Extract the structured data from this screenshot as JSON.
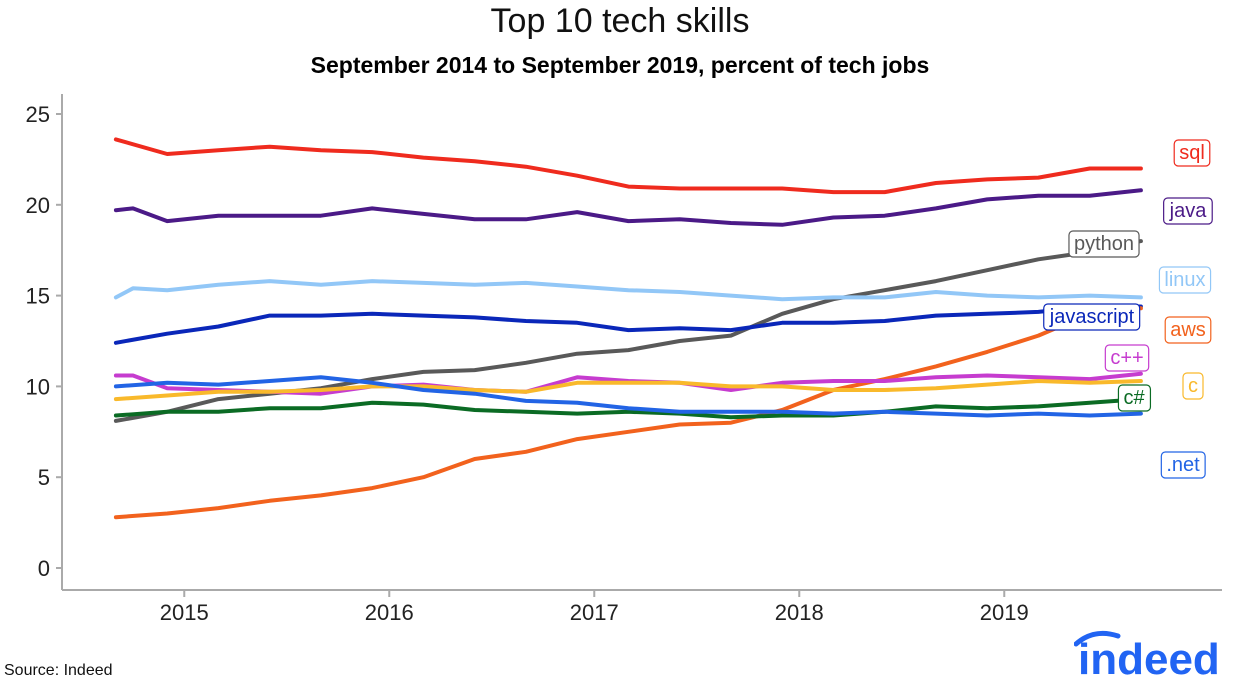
{
  "title": "Top 10 tech skills",
  "subtitle": "September 2014 to September 2019, percent of tech jobs",
  "source": "Source: Indeed",
  "logo_text": "indeed",
  "chart_data": {
    "type": "line",
    "title": "Top 10 tech skills",
    "subtitle": "September 2014 to September 2019, percent of tech jobs",
    "xlabel": "",
    "ylabel": "",
    "x_range": [
      "2014-09",
      "2019-09"
    ],
    "x_ticks": [
      2015,
      2016,
      2017,
      2018,
      2019
    ],
    "x_tick_labels": [
      "2015",
      "2016",
      "2017",
      "2018",
      "2019"
    ],
    "ylim": [
      0,
      26
    ],
    "y_ticks": [
      0,
      5,
      10,
      15,
      20,
      25
    ],
    "y_tick_labels": [
      "0",
      "5",
      "10",
      "15",
      "20",
      "25"
    ],
    "grid": false,
    "legend": "direct labels at right end of lines",
    "series": [
      {
        "name": "sql",
        "color": "#ef2b1e",
        "points": [
          [
            "2014-09",
            23.6
          ],
          [
            "2014-12",
            22.8
          ],
          [
            "2015-03",
            23.0
          ],
          [
            "2015-06",
            23.2
          ],
          [
            "2015-09",
            23.0
          ],
          [
            "2015-12",
            22.9
          ],
          [
            "2016-03",
            22.6
          ],
          [
            "2016-06",
            22.4
          ],
          [
            "2016-09",
            22.1
          ],
          [
            "2016-12",
            21.6
          ],
          [
            "2017-03",
            21.0
          ],
          [
            "2017-06",
            20.9
          ],
          [
            "2017-09",
            20.9
          ],
          [
            "2017-12",
            20.9
          ],
          [
            "2018-03",
            20.7
          ],
          [
            "2018-06",
            20.7
          ],
          [
            "2018-09",
            21.2
          ],
          [
            "2018-12",
            21.4
          ],
          [
            "2019-03",
            21.5
          ],
          [
            "2019-06",
            22.0
          ],
          [
            "2019-09",
            22.0
          ]
        ]
      },
      {
        "name": "java",
        "color": "#4b1a87",
        "points": [
          [
            "2014-09",
            19.7
          ],
          [
            "2014-10",
            19.8
          ],
          [
            "2014-12",
            19.1
          ],
          [
            "2015-03",
            19.4
          ],
          [
            "2015-06",
            19.4
          ],
          [
            "2015-09",
            19.4
          ],
          [
            "2015-12",
            19.8
          ],
          [
            "2016-03",
            19.5
          ],
          [
            "2016-06",
            19.2
          ],
          [
            "2016-09",
            19.2
          ],
          [
            "2016-12",
            19.6
          ],
          [
            "2017-03",
            19.1
          ],
          [
            "2017-06",
            19.2
          ],
          [
            "2017-09",
            19.0
          ],
          [
            "2017-12",
            18.9
          ],
          [
            "2018-03",
            19.3
          ],
          [
            "2018-06",
            19.4
          ],
          [
            "2018-09",
            19.8
          ],
          [
            "2018-12",
            20.3
          ],
          [
            "2019-03",
            20.5
          ],
          [
            "2019-06",
            20.5
          ],
          [
            "2019-09",
            20.8
          ]
        ]
      },
      {
        "name": "python",
        "color": "#595959",
        "points": [
          [
            "2014-09",
            8.1
          ],
          [
            "2014-12",
            8.6
          ],
          [
            "2015-03",
            9.3
          ],
          [
            "2015-06",
            9.6
          ],
          [
            "2015-09",
            9.9
          ],
          [
            "2015-12",
            10.4
          ],
          [
            "2016-03",
            10.8
          ],
          [
            "2016-06",
            10.9
          ],
          [
            "2016-09",
            11.3
          ],
          [
            "2016-12",
            11.8
          ],
          [
            "2017-03",
            12.0
          ],
          [
            "2017-06",
            12.5
          ],
          [
            "2017-09",
            12.8
          ],
          [
            "2017-12",
            14.0
          ],
          [
            "2018-03",
            14.8
          ],
          [
            "2018-06",
            15.3
          ],
          [
            "2018-09",
            15.8
          ],
          [
            "2018-12",
            16.4
          ],
          [
            "2019-03",
            17.0
          ],
          [
            "2019-06",
            17.4
          ],
          [
            "2019-09",
            18.0
          ]
        ]
      },
      {
        "name": "linux",
        "color": "#92c7f7",
        "points": [
          [
            "2014-09",
            14.9
          ],
          [
            "2014-10",
            15.4
          ],
          [
            "2014-12",
            15.3
          ],
          [
            "2015-03",
            15.6
          ],
          [
            "2015-06",
            15.8
          ],
          [
            "2015-09",
            15.6
          ],
          [
            "2015-12",
            15.8
          ],
          [
            "2016-03",
            15.7
          ],
          [
            "2016-06",
            15.6
          ],
          [
            "2016-09",
            15.7
          ],
          [
            "2016-12",
            15.5
          ],
          [
            "2017-03",
            15.3
          ],
          [
            "2017-06",
            15.2
          ],
          [
            "2017-09",
            15.0
          ],
          [
            "2017-12",
            14.8
          ],
          [
            "2018-03",
            14.9
          ],
          [
            "2018-06",
            14.9
          ],
          [
            "2018-09",
            15.2
          ],
          [
            "2018-12",
            15.0
          ],
          [
            "2019-03",
            14.9
          ],
          [
            "2019-06",
            15.0
          ],
          [
            "2019-09",
            14.9
          ]
        ]
      },
      {
        "name": "javascript",
        "color": "#0a27b9",
        "points": [
          [
            "2014-09",
            12.4
          ],
          [
            "2014-12",
            12.9
          ],
          [
            "2015-03",
            13.3
          ],
          [
            "2015-06",
            13.9
          ],
          [
            "2015-09",
            13.9
          ],
          [
            "2015-12",
            14.0
          ],
          [
            "2016-03",
            13.9
          ],
          [
            "2016-06",
            13.8
          ],
          [
            "2016-09",
            13.6
          ],
          [
            "2016-12",
            13.5
          ],
          [
            "2017-03",
            13.1
          ],
          [
            "2017-06",
            13.2
          ],
          [
            "2017-09",
            13.1
          ],
          [
            "2017-12",
            13.5
          ],
          [
            "2018-03",
            13.5
          ],
          [
            "2018-06",
            13.6
          ],
          [
            "2018-09",
            13.9
          ],
          [
            "2018-12",
            14.0
          ],
          [
            "2019-03",
            14.1
          ],
          [
            "2019-06",
            14.4
          ],
          [
            "2019-09",
            14.4
          ]
        ]
      },
      {
        "name": "aws",
        "color": "#f2621d",
        "points": [
          [
            "2014-09",
            2.8
          ],
          [
            "2014-12",
            3.0
          ],
          [
            "2015-03",
            3.3
          ],
          [
            "2015-06",
            3.7
          ],
          [
            "2015-09",
            4.0
          ],
          [
            "2015-12",
            4.4
          ],
          [
            "2016-03",
            5.0
          ],
          [
            "2016-06",
            6.0
          ],
          [
            "2016-09",
            6.4
          ],
          [
            "2016-12",
            7.1
          ],
          [
            "2017-03",
            7.5
          ],
          [
            "2017-06",
            7.9
          ],
          [
            "2017-09",
            8.0
          ],
          [
            "2017-12",
            8.7
          ],
          [
            "2018-03",
            9.8
          ],
          [
            "2018-06",
            10.4
          ],
          [
            "2018-09",
            11.1
          ],
          [
            "2018-12",
            11.9
          ],
          [
            "2019-03",
            12.8
          ],
          [
            "2019-06",
            14.0
          ],
          [
            "2019-09",
            14.3
          ]
        ]
      },
      {
        "name": "c++",
        "color": "#c63ccf",
        "points": [
          [
            "2014-09",
            10.6
          ],
          [
            "2014-10",
            10.6
          ],
          [
            "2014-12",
            9.9
          ],
          [
            "2015-03",
            9.8
          ],
          [
            "2015-06",
            9.7
          ],
          [
            "2015-09",
            9.6
          ],
          [
            "2015-12",
            10.0
          ],
          [
            "2016-03",
            10.1
          ],
          [
            "2016-06",
            9.8
          ],
          [
            "2016-09",
            9.7
          ],
          [
            "2016-12",
            10.5
          ],
          [
            "2017-03",
            10.3
          ],
          [
            "2017-06",
            10.2
          ],
          [
            "2017-09",
            9.8
          ],
          [
            "2017-12",
            10.2
          ],
          [
            "2018-03",
            10.3
          ],
          [
            "2018-06",
            10.3
          ],
          [
            "2018-09",
            10.5
          ],
          [
            "2018-12",
            10.6
          ],
          [
            "2019-03",
            10.5
          ],
          [
            "2019-06",
            10.4
          ],
          [
            "2019-09",
            10.7
          ]
        ]
      },
      {
        "name": "c",
        "color": "#f9b92b",
        "points": [
          [
            "2014-09",
            9.3
          ],
          [
            "2014-12",
            9.5
          ],
          [
            "2015-03",
            9.7
          ],
          [
            "2015-06",
            9.7
          ],
          [
            "2015-09",
            9.8
          ],
          [
            "2015-12",
            10.0
          ],
          [
            "2016-03",
            10.0
          ],
          [
            "2016-06",
            9.8
          ],
          [
            "2016-09",
            9.7
          ],
          [
            "2016-12",
            10.2
          ],
          [
            "2017-03",
            10.2
          ],
          [
            "2017-06",
            10.2
          ],
          [
            "2017-09",
            10.0
          ],
          [
            "2017-12",
            10.0
          ],
          [
            "2018-03",
            9.8
          ],
          [
            "2018-06",
            9.8
          ],
          [
            "2018-09",
            9.9
          ],
          [
            "2018-12",
            10.1
          ],
          [
            "2019-03",
            10.3
          ],
          [
            "2019-06",
            10.2
          ],
          [
            "2019-09",
            10.3
          ]
        ]
      },
      {
        "name": "c#",
        "color": "#0b6b24",
        "points": [
          [
            "2014-09",
            8.4
          ],
          [
            "2014-12",
            8.6
          ],
          [
            "2015-03",
            8.6
          ],
          [
            "2015-06",
            8.8
          ],
          [
            "2015-09",
            8.8
          ],
          [
            "2015-12",
            9.1
          ],
          [
            "2016-03",
            9.0
          ],
          [
            "2016-06",
            8.7
          ],
          [
            "2016-09",
            8.6
          ],
          [
            "2016-12",
            8.5
          ],
          [
            "2017-03",
            8.6
          ],
          [
            "2017-06",
            8.5
          ],
          [
            "2017-09",
            8.3
          ],
          [
            "2017-12",
            8.4
          ],
          [
            "2018-03",
            8.4
          ],
          [
            "2018-06",
            8.6
          ],
          [
            "2018-09",
            8.9
          ],
          [
            "2018-12",
            8.8
          ],
          [
            "2019-03",
            8.9
          ],
          [
            "2019-06",
            9.1
          ],
          [
            "2019-09",
            9.3
          ]
        ]
      },
      {
        "name": ".net",
        "color": "#2264e5",
        "points": [
          [
            "2014-09",
            10.0
          ],
          [
            "2014-12",
            10.2
          ],
          [
            "2015-03",
            10.1
          ],
          [
            "2015-06",
            10.3
          ],
          [
            "2015-09",
            10.5
          ],
          [
            "2015-12",
            10.2
          ],
          [
            "2016-03",
            9.8
          ],
          [
            "2016-06",
            9.6
          ],
          [
            "2016-09",
            9.2
          ],
          [
            "2016-12",
            9.1
          ],
          [
            "2017-03",
            8.8
          ],
          [
            "2017-06",
            8.6
          ],
          [
            "2017-09",
            8.6
          ],
          [
            "2017-12",
            8.6
          ],
          [
            "2018-03",
            8.5
          ],
          [
            "2018-06",
            8.6
          ],
          [
            "2018-09",
            8.5
          ],
          [
            "2018-12",
            8.4
          ],
          [
            "2019-03",
            8.5
          ],
          [
            "2019-06",
            8.4
          ],
          [
            "2019-09",
            8.5
          ]
        ]
      }
    ]
  }
}
